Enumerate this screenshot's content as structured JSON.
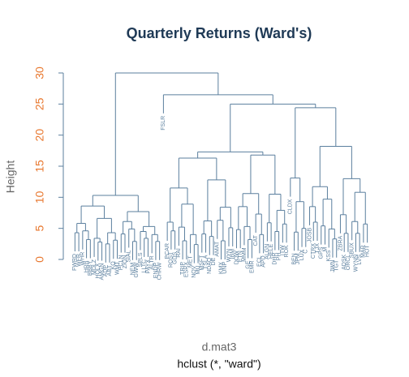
{
  "chart_data": {
    "type": "dendrogram",
    "title": "Quarterly Returns (Ward's)",
    "ylabel": "Height",
    "xlabel": "d.mat3",
    "subtitle": "hclust (*, \"ward\")",
    "ylim": [
      0,
      30
    ],
    "yticks": [
      0,
      5,
      10,
      15,
      20,
      25,
      30
    ],
    "color": "#5b7f9e",
    "tick_color": "#e8772e",
    "tree": {
      "h": 30,
      "c": [
        {
          "h": 10.3,
          "c": [
            {
              "h": 8.6,
              "c": [
                {
                  "h": 5.8,
                  "c": [
                    {
                      "h": 4.3,
                      "c": [
                        "FWRD",
                        "WFR"
                      ]
                    },
                    {
                      "h": 4.6,
                      "c": [
                        "WHR",
                        {
                          "h": 3.2,
                          "c": [
                            "HRB",
                            "BBBY"
                          ]
                        }
                      ]
                    }
                  ]
                },
                {
                  "h": 6.6,
                  "c": [
                    {
                      "h": 3.4,
                      "c": [
                        "MDLZ",
                        {
                          "h": 2.8,
                          "c": [
                            "HOLX",
                            "AMGN"
                          ]
                        }
                      ]
                    },
                    {
                      "h": 4.3,
                      "c": [
                        {
                          "h": 2.5,
                          "c": [
                            "ADP",
                            "ABT"
                          ]
                        },
                        {
                          "h": 3.1,
                          "c": [
                            "KO",
                            "WMT"
                          ]
                        }
                      ]
                    }
                  ]
                }
              ]
            },
            {
              "h": 7.7,
              "c": [
                {
                  "h": 6.1,
                  "c": [
                    {
                      "h": 4.1,
                      "c": [
                        "PCLN",
                        "ZION"
                      ]
                    },
                    {
                      "h": 4.9,
                      "c": [
                        "SIAL",
                        {
                          "h": 2.9,
                          "c": [
                            "NEM",
                            "GWW"
                          ]
                        }
                      ]
                    }
                  ]
                },
                {
                  "h": 5.3,
                  "c": [
                    {
                      "h": 4.5,
                      "c": [
                        "SPLS",
                        {
                          "h": 3.4,
                          "c": [
                            "LLTC",
                            "PAYX"
                          ]
                        }
                      ]
                    },
                    {
                      "h": 4.0,
                      "c": [
                        "ALTR",
                        {
                          "h": 2.9,
                          "c": [
                            "ENDP",
                            "CHRW"
                          ]
                        }
                      ]
                    }
                  ]
                }
              ]
            }
          ]
        },
        {
          "h": 26.5,
          "c": [
            "FSLR",
            {
              "h": 25,
              "c": [
                {
                  "h": 17.3,
                  "c": [
                    {
                      "h": 16.3,
                      "c": [
                        {
                          "h": 11.5,
                          "c": [
                            {
                              "h": 6.0,
                              "c": [
                                "PCAR",
                                {
                                  "h": 4.6,
                                  "c": [
                                    "ROST",
                                    "GDS"
                                  ]
                                }
                              ]
                            },
                            {
                              "h": 8.9,
                              "c": [
                                {
                                  "h": 5.2,
                                  "c": [
                                    "RAI",
                                    {
                                      "h": 3.0,
                                      "c": [
                                        "TRIP",
                                        "ESRX"
                                      ]
                                    }
                                  ]
                                },
                                {
                                  "h": 4.0,
                                  "c": [
                                    "MET",
                                    {
                                      "h": 2.4,
                                      "c": [
                                        "NOV",
                                        "MU"
                                      ]
                                    }
                                  ]
                                }
                              ]
                            }
                          ]
                        },
                        {
                          "h": 12.8,
                          "c": [
                            {
                              "h": 6.2,
                              "c": [
                                {
                                  "h": 4.1,
                                  "c": [
                                    "MSFT",
                                    "TSLA"
                                  ]
                                },
                                {
                                  "h": 3.7,
                                  "c": [
                                    "NDAQ",
                                    "DE"
                                  ]
                                }
                              ]
                            },
                            {
                              "h": 8.4,
                              "c": [
                                {
                                  "h": 6.3,
                                  "c": [
                                    "AMAT",
                                    {
                                      "h": 3.0,
                                      "c": [
                                        "KMX",
                                        "UNP"
                                      ]
                                    }
                                  ]
                                },
                                {
                                  "h": 5.1,
                                  "c": [
                                    "WYN",
                                    "IBM"
                                  ]
                                }
                              ]
                            }
                          ]
                        }
                      ]
                    },
                    {
                      "h": 16.8,
                      "c": [
                        {
                          "h": 10.6,
                          "c": [
                            {
                              "h": 8.5,
                              "c": [
                                {
                                  "h": 4.8,
                                  "c": [
                                    "DOW",
                                    "ETN"
                                  ]
                                },
                                {
                                  "h": 5.3,
                                  "c": [
                                    "MMM",
                                    {
                                      "h": 3.2,
                                      "c": [
                                        "GE",
                                        "EMR"
                                      ]
                                    }
                                  ]
                                }
                              ]
                            },
                            {
                              "h": 7.3,
                              "c": [
                                "CAT",
                                {
                                  "h": 4.0,
                                  "c": [
                                    "ECL",
                                    "APD"
                                  ]
                                }
                              ]
                            }
                          ]
                        },
                        {
                          "h": 10.5,
                          "c": [
                            {
                              "h": 5.9,
                              "c": [
                                "ALGN",
                                "HELE"
                              ]
                            },
                            {
                              "h": 7.9,
                              "c": [
                                {
                                  "h": 4.5,
                                  "c": [
                                    "DHR",
                                    "PH"
                                  ]
                                },
                                {
                                  "h": 5.7,
                                  "c": [
                                    "ITW",
                                    "ROK"
                                  ]
                                }
                              ]
                            }
                          ]
                        }
                      ]
                    }
                  ]
                },
                {
                  "h": 24.4,
                  "c": [
                    {
                      "h": 13.1,
                      "c": [
                        "CLDX",
                        {
                          "h": 9.3,
                          "c": [
                            {
                              "h": 4.4,
                              "c": [
                                "BEN",
                                "JPM"
                              ]
                            },
                            {
                              "h": 5.0,
                              "c": [
                                "LUX",
                                "C"
                              ]
                            }
                          ]
                        }
                      ]
                    },
                    {
                      "h": 18.2,
                      "c": [
                        {
                          "h": 11.7,
                          "c": [
                            {
                              "h": 8.5,
                              "c": [
                                "JOSB",
                                {
                                  "h": 6.0,
                                  "c": [
                                    "CTRX",
                                    "TJX"
                                  ]
                                }
                              ]
                            },
                            {
                              "h": 9.7,
                              "c": [
                                {
                                  "h": 5.4,
                                  "c": [
                                    "GPS",
                                    "M"
                                  ]
                                },
                                {
                                  "h": 4.9,
                                  "c": [
                                    "KSS",
                                    {
                                      "h": 3.3,
                                      "c": [
                                        "JWN",
                                        "TGT"
                                      ]
                                    }
                                  ]
                                }
                              ]
                            }
                          ]
                        },
                        {
                          "h": 13.0,
                          "c": [
                            {
                              "h": 7.2,
                              "c": [
                                "ZBRA",
                                {
                                  "h": 4.2,
                                  "c": [
                                    "ADSK",
                                    "ORCL"
                                  ]
                                }
                              ]
                            },
                            {
                              "h": 10.8,
                              "c": [
                                {
                                  "h": 6.1,
                                  "c": [
                                    "SBUX",
                                    {
                                      "h": 4.2,
                                      "c": [
                                        "WYNN",
                                        "LVS"
                                      ]
                                    }
                                  ]
                                },
                                {
                                  "h": 5.7,
                                  "c": [
                                    "MAR",
                                    "HOT"
                                  ]
                                }
                              ]
                            }
                          ]
                        }
                      ]
                    }
                  ]
                }
              ]
            }
          ]
        }
      ]
    }
  }
}
